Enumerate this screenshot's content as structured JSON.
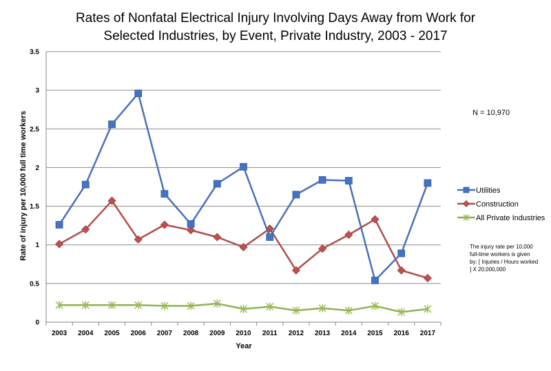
{
  "chart_data": {
    "type": "line",
    "title_line1": "Rates of Nonfatal Electrical Injury Involving Days Away from Work for",
    "title_line2": "Selected Industries, by Event, Private Industry, 2003 - 2017",
    "xlabel": "Year",
    "ylabel": "Rate of injury per 10,000 full time workers",
    "ylim": [
      0,
      3.5
    ],
    "yticks": [
      "0",
      "0.5",
      "1",
      "1.5",
      "2",
      "2.5",
      "3",
      "3.5"
    ],
    "grid": true,
    "legend_position": "right",
    "x": [
      "2003",
      "2004",
      "2005",
      "2006",
      "2007",
      "2008",
      "2009",
      "2010",
      "2011",
      "2012",
      "2013",
      "2014",
      "2015",
      "2016",
      "2017"
    ],
    "series": [
      {
        "name": "Utilities",
        "color": "#4472c4",
        "line_color": "#4a6fba",
        "marker": "square",
        "values": [
          1.26,
          1.78,
          2.56,
          2.96,
          1.66,
          1.27,
          1.79,
          2.01,
          1.1,
          1.65,
          1.84,
          1.83,
          0.54,
          0.89,
          1.8
        ]
      },
      {
        "name": "Construction",
        "color": "#c0504d",
        "line_color": "#b04c4a",
        "marker": "diamond",
        "values": [
          1.01,
          1.2,
          1.57,
          1.07,
          1.26,
          1.19,
          1.1,
          0.97,
          1.21,
          0.67,
          0.95,
          1.13,
          1.33,
          0.67,
          0.57
        ]
      },
      {
        "name": "All Private Industries",
        "color": "#9bbb59",
        "line_color": "#8fb24e",
        "marker": "star",
        "values": [
          0.22,
          0.22,
          0.22,
          0.22,
          0.21,
          0.21,
          0.24,
          0.17,
          0.2,
          0.15,
          0.18,
          0.15,
          0.21,
          0.13,
          0.17
        ]
      }
    ],
    "annotation_n": "N = 10,970",
    "annotation_note": "The injury rate per 10,000 full-time workers is given by: [ Injuries / Hours worked ] X 20,000,000"
  }
}
